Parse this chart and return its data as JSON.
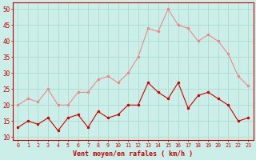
{
  "hours": [
    0,
    1,
    2,
    3,
    4,
    5,
    6,
    7,
    8,
    9,
    10,
    11,
    12,
    13,
    14,
    15,
    16,
    17,
    18,
    19,
    20,
    21,
    22,
    23
  ],
  "vent_moyen": [
    13,
    15,
    14,
    16,
    12,
    16,
    17,
    13,
    18,
    16,
    17,
    20,
    20,
    27,
    24,
    22,
    27,
    19,
    23,
    24,
    22,
    20,
    15,
    16
  ],
  "en_rafales": [
    20,
    22,
    21,
    25,
    20,
    20,
    24,
    24,
    28,
    29,
    27,
    30,
    35,
    44,
    43,
    50,
    45,
    44,
    40,
    42,
    40,
    36,
    29,
    26
  ],
  "bg_color": "#cceee8",
  "grid_color": "#aaddcc",
  "line_moyen_color": "#cc0000",
  "line_rafales_color": "#ee8888",
  "xlabel": "Vent moyen/en rafales ( km/h )",
  "yticks": [
    10,
    15,
    20,
    25,
    30,
    35,
    40,
    45,
    50
  ],
  "ylim": [
    9,
    52
  ],
  "xlim": [
    -0.5,
    23.5
  ],
  "axis_color": "#cc0000",
  "tick_color": "#cc0000",
  "xlabel_color": "#cc0000"
}
